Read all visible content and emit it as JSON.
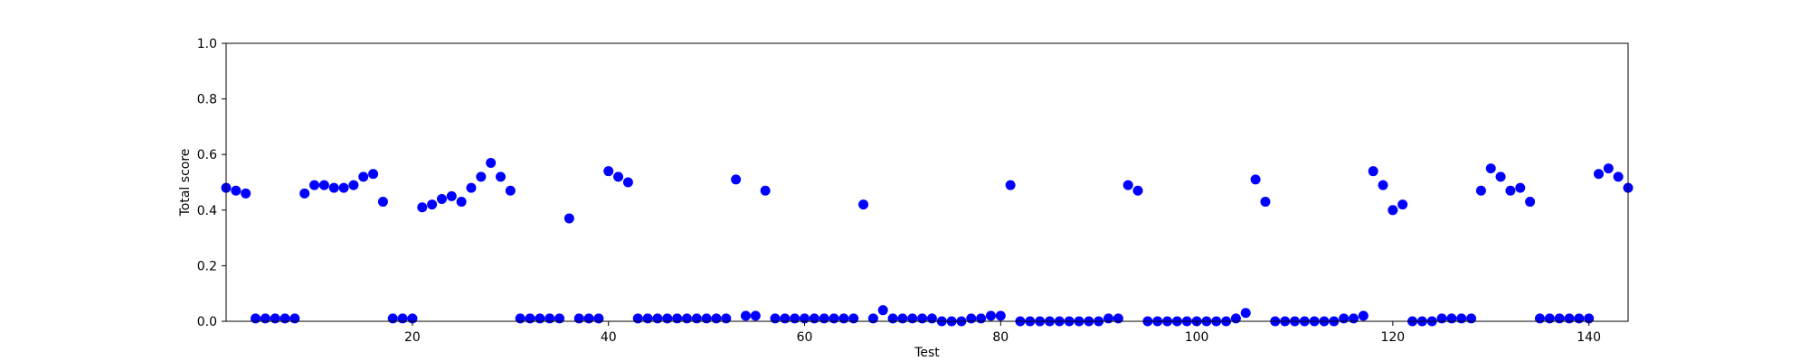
{
  "chart_data": {
    "type": "scatter",
    "title": "",
    "xlabel": "Test",
    "ylabel": "Total score",
    "xlim": [
      1,
      144
    ],
    "ylim": [
      0.0,
      1.0
    ],
    "x_ticks": [
      20,
      40,
      60,
      80,
      100,
      120,
      140
    ],
    "y_ticks": [
      0.0,
      0.2,
      0.4,
      0.6,
      0.8,
      1.0
    ],
    "x_tick_labels": [
      "20",
      "40",
      "60",
      "80",
      "100",
      "120",
      "140"
    ],
    "y_tick_labels": [
      "0.0",
      "0.2",
      "0.4",
      "0.6",
      "0.8",
      "1.0"
    ],
    "grid": false,
    "marker_color": "#0000ff",
    "series": [
      {
        "x": [
          1,
          2,
          3,
          4,
          5,
          6,
          7,
          8,
          9,
          10,
          11,
          12,
          13,
          14,
          15,
          16,
          17,
          18,
          19,
          20,
          21,
          22,
          23,
          24,
          25,
          26,
          27,
          28,
          29,
          30,
          31,
          32,
          33,
          34,
          35,
          36,
          37,
          38,
          39,
          40,
          41,
          42,
          43,
          44,
          45,
          46,
          47,
          48,
          49,
          50,
          51,
          52,
          53,
          54,
          55,
          56,
          57,
          58,
          59,
          60,
          61,
          62,
          63,
          64,
          65,
          66,
          67,
          68,
          69,
          70,
          71,
          72,
          73,
          74,
          75,
          76,
          77,
          78,
          79,
          80,
          81,
          82,
          83,
          84,
          85,
          86,
          87,
          88,
          89,
          90,
          91,
          92,
          93,
          94,
          95,
          96,
          97,
          98,
          99,
          100,
          101,
          102,
          103,
          104,
          105,
          106,
          107,
          108,
          109,
          110,
          111,
          112,
          113,
          114,
          115,
          116,
          117,
          118,
          119,
          120,
          121,
          122,
          123,
          124,
          125,
          126,
          127,
          128,
          129,
          130,
          131,
          132,
          133,
          134,
          135,
          136,
          137,
          138,
          139,
          140,
          141,
          142,
          143,
          144
        ],
        "y": [
          0.48,
          0.47,
          0.46,
          0.01,
          0.01,
          0.01,
          0.01,
          0.01,
          0.46,
          0.49,
          0.49,
          0.48,
          0.48,
          0.49,
          0.52,
          0.53,
          0.43,
          0.01,
          0.01,
          0.01,
          0.41,
          0.42,
          0.44,
          0.45,
          0.43,
          0.48,
          0.52,
          0.57,
          0.52,
          0.47,
          0.01,
          0.01,
          0.01,
          0.01,
          0.01,
          0.37,
          0.01,
          0.01,
          0.01,
          0.54,
          0.52,
          0.5,
          0.01,
          0.01,
          0.01,
          0.01,
          0.01,
          0.01,
          0.01,
          0.01,
          0.01,
          0.01,
          0.51,
          0.02,
          0.02,
          0.47,
          0.01,
          0.01,
          0.01,
          0.01,
          0.01,
          0.01,
          0.01,
          0.01,
          0.01,
          0.42,
          0.01,
          0.04,
          0.01,
          0.01,
          0.01,
          0.01,
          0.01,
          0.0,
          0.0,
          0.0,
          0.01,
          0.01,
          0.02,
          0.02,
          0.49,
          0.0,
          0.0,
          0.0,
          0.0,
          0.0,
          0.0,
          0.0,
          0.0,
          0.0,
          0.01,
          0.01,
          0.49,
          0.47,
          0.0,
          0.0,
          0.0,
          0.0,
          0.0,
          0.0,
          0.0,
          0.0,
          0.0,
          0.01,
          0.03,
          0.51,
          0.43,
          0.0,
          0.0,
          0.0,
          0.0,
          0.0,
          0.0,
          0.0,
          0.01,
          0.01,
          0.02,
          0.54,
          0.49,
          0.4,
          0.42,
          0.0,
          0.0,
          0.0,
          0.01,
          0.01,
          0.01,
          0.01,
          0.47,
          0.55,
          0.52,
          0.47,
          0.48,
          0.43,
          0.01,
          0.01,
          0.01,
          0.01,
          0.01,
          0.01,
          0.53,
          0.55,
          0.52,
          0.48
        ]
      }
    ]
  }
}
